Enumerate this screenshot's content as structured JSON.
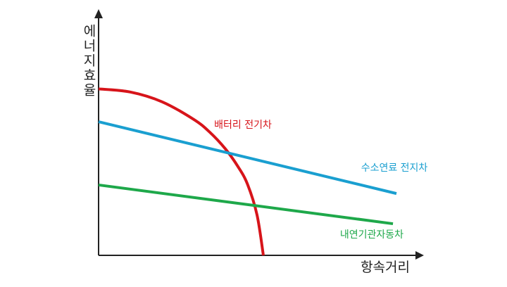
{
  "chart_data": {
    "type": "line",
    "xlabel": "항속거리",
    "ylabel": "에너지효율",
    "xlim": [
      0,
      100
    ],
    "ylim": [
      0,
      100
    ],
    "series": [
      {
        "name": "배터리 전기차",
        "color": "#d7141a",
        "x": [
          0,
          10,
          20,
          30,
          35,
          40,
          44,
          47,
          50,
          52
        ],
        "values": [
          70,
          68.7,
          64.6,
          57.2,
          51.9,
          44.8,
          37.3,
          29.9,
          17,
          0
        ]
      },
      {
        "name": "수소연료 전지차",
        "color": "#1a9fd0",
        "x": [
          0,
          94
        ],
        "values": [
          56.2,
          26
        ]
      },
      {
        "name": "내연기관자동차",
        "color": "#1ea84a",
        "x": [
          0,
          92.9
        ],
        "values": [
          29.6,
          13.3
        ]
      }
    ]
  }
}
